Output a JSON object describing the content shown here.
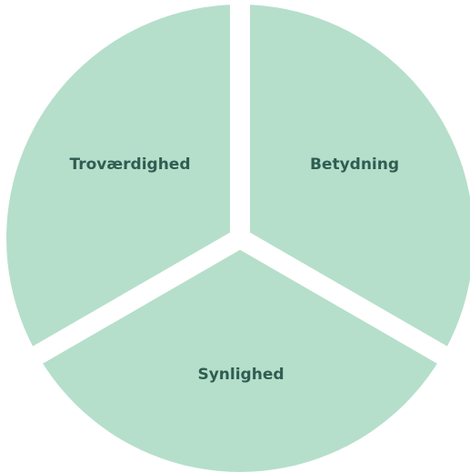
{
  "nodes": [
    {
      "label": "Troværdighed"
    },
    {
      "label": "Betydning"
    },
    {
      "label": "Synlighed"
    }
  ]
}
